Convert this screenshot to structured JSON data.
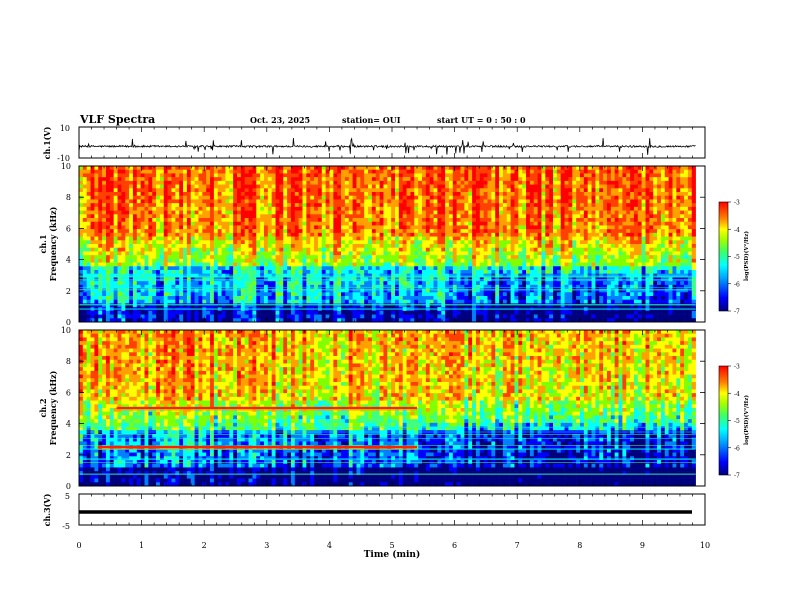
{
  "header": {
    "title": "VLF Spectra",
    "date": "Oct. 23, 2025",
    "station": "station= OUI",
    "start": "start  UT =   0  : 50 : 0"
  },
  "chart_data": [
    {
      "id": "ch1_waveform",
      "type": "line",
      "ylabel": "ch.1(V)",
      "ylim": [
        -10,
        10
      ],
      "yticklabels": [
        "10",
        "-10"
      ],
      "xlim": [
        0,
        10
      ],
      "baseline_v": -2.5,
      "noise_amplitude_v": 1.2,
      "spike_amplitude_v": 5.5
    },
    {
      "id": "ch1_spectrogram",
      "type": "heatmap",
      "ylabel": "ch.1\nFrequency (kHz)",
      "ylim": [
        0,
        10
      ],
      "yticklabels": [
        "0",
        "2",
        "4",
        "6",
        "8",
        "10"
      ],
      "xlim": [
        0,
        9.85
      ],
      "colorbar": {
        "label": "log(PSD)(V²/Hz)",
        "range": [
          -7,
          -3
        ],
        "ticklabels": [
          "-3",
          "-4",
          "-5",
          "-6",
          "-7"
        ]
      },
      "description_bands": [
        {
          "fmin_khz": 0,
          "fmax_khz": 1.2,
          "log_psd": -6.5
        },
        {
          "fmin_khz": 1.2,
          "fmax_khz": 3.5,
          "log_psd": -5.8
        },
        {
          "fmin_khz": 3.5,
          "fmax_khz": 5.5,
          "log_psd": -4.8
        },
        {
          "fmin_khz": 5.5,
          "fmax_khz": 10,
          "log_psd": -3.6
        }
      ]
    },
    {
      "id": "ch2_spectrogram",
      "type": "heatmap",
      "ylabel": "ch.2\nFrequency (kHz)",
      "ylim": [
        0,
        10
      ],
      "yticklabels": [
        "0",
        "2",
        "4",
        "6",
        "8",
        "10"
      ],
      "xlim": [
        0,
        9.85
      ],
      "colorbar": {
        "label": "log(PSD)(V²/Hz)",
        "range": [
          -7,
          -3
        ],
        "ticklabels": [
          "-3",
          "-4",
          "-5",
          "-6",
          "-7"
        ]
      },
      "emission_lines": [
        {
          "freq_khz": 5.0,
          "t_start_min": 0.6,
          "t_end_min": 5.4
        },
        {
          "freq_khz": 2.5,
          "t_start_min": 0.3,
          "t_end_min": 5.4
        }
      ]
    },
    {
      "id": "ch3_waveform",
      "type": "line",
      "ylabel": "ch.3(V)",
      "ylim": [
        -5,
        5
      ],
      "yticklabels": [
        "5",
        "-5"
      ],
      "xlim": [
        0,
        10
      ],
      "level_v": -1.5
    }
  ],
  "xaxis": {
    "label": "Time (min)",
    "ticklabels": [
      "0",
      "1",
      "2",
      "3",
      "4",
      "5",
      "6",
      "7",
      "8",
      "9",
      "10"
    ]
  },
  "colormap": [
    "#00007f",
    "#0000ff",
    "#0080ff",
    "#00ffff",
    "#40ff80",
    "#80ff00",
    "#ffff00",
    "#ffa000",
    "#ff4000",
    "#ff0000"
  ]
}
